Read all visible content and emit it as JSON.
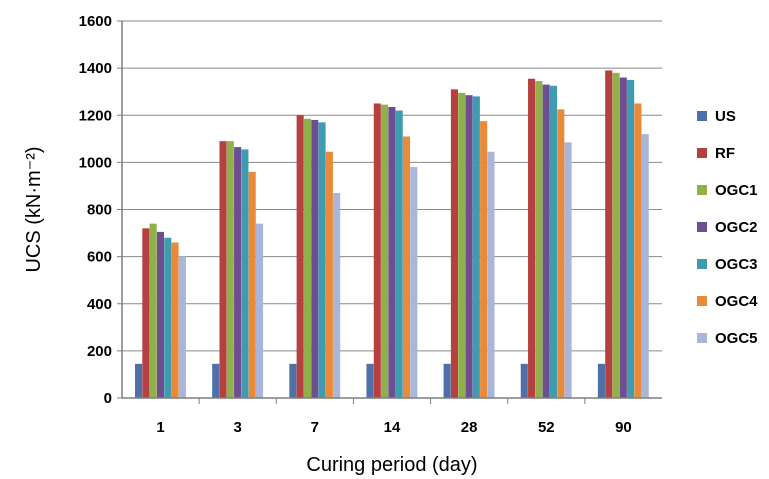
{
  "chart_data": {
    "type": "bar",
    "ylabel": "UCS (kN·m⁻²)",
    "xlabel": "Curing period (day)",
    "categories": [
      "1",
      "3",
      "7",
      "14",
      "28",
      "52",
      "90"
    ],
    "ylim": [
      0,
      1600
    ],
    "yticks": [
      0,
      200,
      400,
      600,
      800,
      1000,
      1200,
      1400,
      1600
    ],
    "grid": true,
    "legend_position": "right",
    "series": [
      {
        "name": "US",
        "color": "#4F6FA8",
        "values": [
          145,
          145,
          145,
          145,
          145,
          145,
          145
        ]
      },
      {
        "name": "RF",
        "color": "#B5403F",
        "values": [
          720,
          1090,
          1200,
          1250,
          1310,
          1355,
          1390
        ]
      },
      {
        "name": "OGC1",
        "color": "#8FB04B",
        "values": [
          740,
          1090,
          1185,
          1245,
          1295,
          1345,
          1380
        ]
      },
      {
        "name": "OGC2",
        "color": "#6C4E91",
        "values": [
          705,
          1065,
          1180,
          1235,
          1285,
          1330,
          1360
        ]
      },
      {
        "name": "OGC3",
        "color": "#3F9BB0",
        "values": [
          680,
          1055,
          1170,
          1220,
          1280,
          1325,
          1350
        ]
      },
      {
        "name": "OGC4",
        "color": "#E98A3A",
        "values": [
          660,
          960,
          1045,
          1110,
          1175,
          1225,
          1250
        ]
      },
      {
        "name": "OGC5",
        "color": "#A9B6DA",
        "values": [
          600,
          740,
          870,
          980,
          1045,
          1085,
          1120
        ]
      }
    ]
  }
}
